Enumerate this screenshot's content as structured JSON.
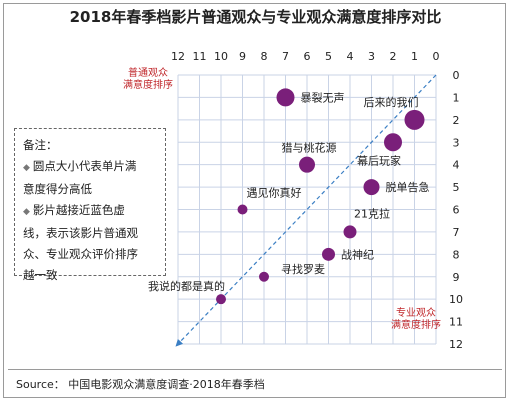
{
  "title": "2018年春季档影片普通观众与专业观众满意度排序对比",
  "note": {
    "heading": "备注：",
    "bullet1_line1": "圆点大小代表单片满",
    "bullet1_line2": "意度得分高低",
    "bullet2_line1": "影片越接近蓝色虚",
    "bullet2_line2": "线，表示该影片普通观",
    "bullet2_line3": "众、专业观众评价排序",
    "bullet2_line4": "越一致"
  },
  "source": "Source： 中国电影观众满意度调查·2018年春季档",
  "chart_data": {
    "type": "scatter",
    "title": "2018年春季档影片普通观众与专业观众满意度排序对比",
    "xlabel": [
      "普通观众",
      "满意度排序"
    ],
    "ylabel": [
      "专业观众",
      "满意度排序"
    ],
    "xlim": [
      12,
      0
    ],
    "ylim": [
      0,
      12
    ],
    "x_reversed": true,
    "x_ticks": [
      12,
      11,
      10,
      9,
      8,
      7,
      6,
      5,
      4,
      3,
      2,
      1,
      0
    ],
    "y_ticks": [
      0,
      1,
      2,
      3,
      4,
      5,
      6,
      7,
      8,
      9,
      10,
      11,
      12
    ],
    "grid": true,
    "diagonal_reference": true,
    "colors": {
      "point": "#7a1f7a",
      "grid": "#c9d3e6",
      "diagonal": "#3b7fc4",
      "axis_label": "#c0282c"
    },
    "points": [
      {
        "name": "暴裂无声",
        "x": 7,
        "y": 1,
        "size": 9,
        "label_pos": "right"
      },
      {
        "name": "后来的我们",
        "x": 1,
        "y": 2,
        "size": 10,
        "label_pos": "top-left"
      },
      {
        "name": "幕后玩家",
        "x": 2,
        "y": 3,
        "size": 9,
        "label_pos": "bottom"
      },
      {
        "name": "猎与桃花源",
        "x": 6,
        "y": 4,
        "size": 8,
        "label_pos": "top"
      },
      {
        "name": "脱单告急",
        "x": 3,
        "y": 5,
        "size": 8,
        "label_pos": "right"
      },
      {
        "name": "遇见你真好",
        "x": 9,
        "y": 6,
        "size": 5,
        "label_pos": "top-right"
      },
      {
        "name": "21克拉",
        "x": 4,
        "y": 7,
        "size": 6.5,
        "label_pos": "top-right"
      },
      {
        "name": "战神纪",
        "x": 5,
        "y": 8,
        "size": 6.5,
        "label_pos": "right"
      },
      {
        "name": "寻找罗麦",
        "x": 8,
        "y": 9,
        "size": 5,
        "label_pos": "right-up"
      },
      {
        "name": "我说的都是真的",
        "x": 10,
        "y": 10,
        "size": 5,
        "label_pos": "top-left"
      }
    ]
  }
}
